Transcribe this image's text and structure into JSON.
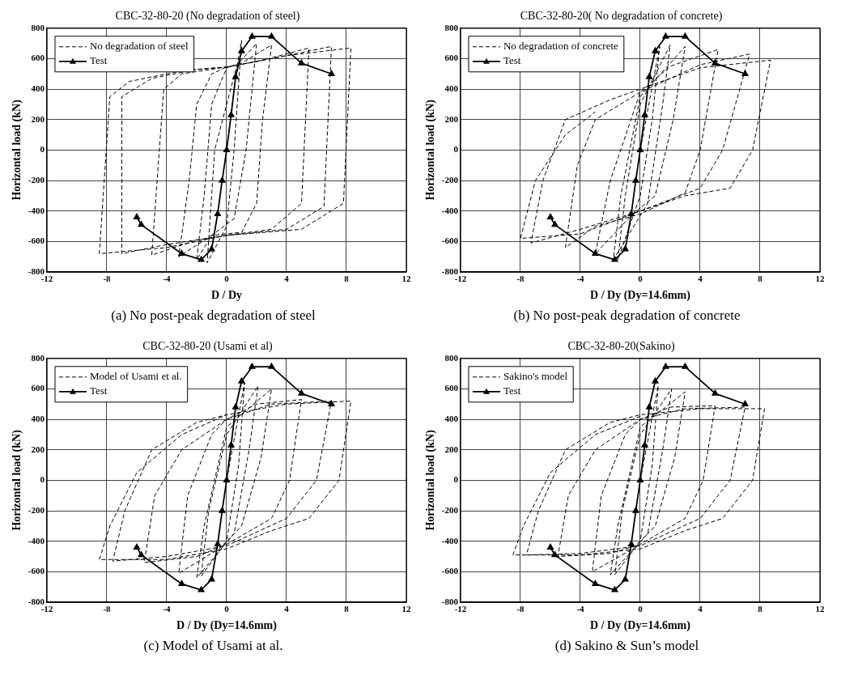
{
  "chart_data": [
    {
      "type": "line",
      "title": "CBC-32-80-20 (No degradation of steel)",
      "xlabel": "D / Dy",
      "ylabel": "Horizontal load (kN)",
      "annotations": [
        "(a) No post-peak degradation of steel"
      ],
      "xlim": [
        -12,
        12
      ],
      "ylim": [
        -800,
        800
      ],
      "xticks": [
        -12,
        -8,
        -4,
        0,
        4,
        8,
        12
      ],
      "yticks": [
        -800,
        -600,
        -400,
        -200,
        0,
        200,
        400,
        600,
        800
      ],
      "grid": true,
      "legend": "top left",
      "series": [
        {
          "name": "No degradation of steel",
          "color": "#000000",
          "line_style": "dashed",
          "marker": "none",
          "x": [
            0,
            0.7,
            1,
            0.5,
            0,
            -1.3,
            -0.8,
            0.7,
            2,
            1.3,
            0.5,
            -1,
            -2,
            -1.5,
            -1,
            0,
            1,
            3,
            2.4,
            2,
            1,
            -1,
            -3.2,
            -2.5,
            -2,
            -1,
            0,
            2,
            5.5,
            5,
            3,
            0,
            -2,
            -5,
            -4.2,
            -3,
            0,
            3,
            7,
            6.5,
            4,
            0,
            -4,
            -7,
            -7,
            -5,
            -2,
            0,
            4,
            8.3,
            7.8,
            5,
            0,
            -4,
            -8.5,
            -7.8,
            -6.5,
            -3,
            0
          ],
          "values": [
            0,
            550,
            720,
            0,
            -500,
            -740,
            0,
            560,
            700,
            0,
            -450,
            -560,
            -720,
            -300,
            300,
            540,
            570,
            690,
            200,
            -350,
            -540,
            -560,
            -700,
            -200,
            300,
            500,
            545,
            580,
            670,
            -350,
            -520,
            -560,
            -590,
            -690,
            400,
            500,
            545,
            600,
            680,
            -370,
            -520,
            -560,
            -620,
            -680,
            350,
            470,
            530,
            545,
            620,
            670,
            -350,
            -520,
            -560,
            -640,
            -680,
            350,
            450,
            520,
            545
          ]
        },
        {
          "name": "Test",
          "color": "#000000",
          "line_style": "solid",
          "marker": "triangle",
          "x": [
            -6,
            -5.7,
            -3,
            -1.7,
            -1,
            -0.6,
            -0.3,
            0,
            0.3,
            0.6,
            1,
            1.7,
            3,
            5,
            7
          ],
          "values": [
            -440,
            -490,
            -680,
            -720,
            -650,
            -420,
            -200,
            0,
            230,
            480,
            650,
            745,
            745,
            570,
            500
          ]
        }
      ]
    },
    {
      "type": "line",
      "title": "CBC-32-80-20( No degradation of concrete)",
      "xlabel": "D / Dy (Dy=14.6mm)",
      "ylabel": "Horizontal load (kN)",
      "annotations": [
        "(b) No post-peak degradation of concrete"
      ],
      "xlim": [
        -12,
        12
      ],
      "ylim": [
        -800,
        800
      ],
      "xticks": [
        -12,
        -8,
        -4,
        0,
        4,
        8,
        12
      ],
      "yticks": [
        -800,
        -600,
        -400,
        -200,
        0,
        200,
        400,
        600,
        800
      ],
      "grid": true,
      "legend": "top left",
      "series": [
        {
          "name": "No degradation of concrete",
          "color": "#000000",
          "line_style": "dashed",
          "marker": "none",
          "x": [
            0,
            1.3,
            0.8,
            0,
            -1.5,
            -1,
            0,
            2,
            1.5,
            0.5,
            -1.8,
            -1.3,
            0,
            3,
            2.2,
            1,
            -0.5,
            -3,
            -2,
            0,
            2,
            5.2,
            4,
            3,
            0,
            -3,
            -5,
            -4.2,
            -3,
            0,
            4,
            7.3,
            5.5,
            4,
            0,
            -4,
            -7.3,
            -6.5,
            -5,
            -2,
            0,
            4,
            8.7,
            7.5,
            6,
            3,
            0,
            -4,
            -8,
            -7,
            -5,
            -3
          ],
          "values": [
            0,
            680,
            200,
            -300,
            -720,
            -300,
            300,
            690,
            300,
            -350,
            -720,
            -300,
            350,
            680,
            200,
            -300,
            -420,
            -680,
            -200,
            380,
            550,
            660,
            0,
            -280,
            -420,
            -500,
            -640,
            -100,
            200,
            380,
            560,
            630,
            0,
            -250,
            -400,
            -520,
            -610,
            -200,
            200,
            330,
            400,
            540,
            590,
            0,
            -250,
            -300,
            -400,
            -550,
            -580,
            -200,
            100,
            250
          ]
        },
        {
          "name": "Test",
          "color": "#000000",
          "line_style": "solid",
          "marker": "triangle",
          "x": [
            -6,
            -5.7,
            -3,
            -1.7,
            -1,
            -0.6,
            -0.3,
            0,
            0.3,
            0.6,
            1,
            1.7,
            3,
            5,
            7
          ],
          "values": [
            -440,
            -490,
            -680,
            -720,
            -650,
            -420,
            -200,
            0,
            230,
            480,
            650,
            745,
            745,
            570,
            500
          ]
        }
      ]
    },
    {
      "type": "line",
      "title": "CBC-32-80-20 (Usami et al)",
      "xlabel": "D / Dy (Dy=14.6mm)",
      "ylabel": "Horizontal load (kN)",
      "annotations": [
        "(c) Model of Usami at al."
      ],
      "xlim": [
        -12,
        12
      ],
      "ylim": [
        -800,
        800
      ],
      "xticks": [
        -12,
        -8,
        -4,
        0,
        4,
        8,
        12
      ],
      "yticks": [
        -800,
        -600,
        -400,
        -200,
        0,
        200,
        400,
        600,
        800
      ],
      "grid": true,
      "legend": "top left",
      "series": [
        {
          "name": "Model of Usami et al.",
          "color": "#000000",
          "line_style": "dashed",
          "marker": "none",
          "x": [
            0,
            1.2,
            0.8,
            0,
            -1.7,
            -1.2,
            0,
            2.1,
            1.5,
            0.5,
            -2,
            -1.5,
            0,
            3,
            2.3,
            1,
            -0.5,
            -3.2,
            -2.6,
            -1,
            0,
            2,
            5,
            4.2,
            3,
            0,
            -2,
            -5.5,
            -4.8,
            -3,
            0,
            3,
            7,
            6,
            4,
            0,
            -4,
            -7.6,
            -6.8,
            -5,
            -2,
            0,
            4,
            8.3,
            7.5,
            5.5,
            3,
            0,
            -4,
            -8.5,
            -7.8,
            -6,
            -3,
            0
          ],
          "values": [
            0,
            640,
            100,
            -400,
            -630,
            -200,
            300,
            620,
            200,
            -350,
            -640,
            -300,
            350,
            600,
            150,
            -300,
            -450,
            -610,
            -100,
            300,
            400,
            500,
            530,
            0,
            -250,
            -420,
            -500,
            -540,
            -100,
            200,
            400,
            500,
            520,
            0,
            -250,
            -430,
            -500,
            -530,
            -200,
            200,
            380,
            430,
            500,
            520,
            0,
            -250,
            -330,
            -450,
            -520,
            -520,
            -300,
            50,
            300,
            430
          ]
        },
        {
          "name": "Test",
          "color": "#000000",
          "line_style": "solid",
          "marker": "triangle",
          "x": [
            -6,
            -5.7,
            -3,
            -1.7,
            -1,
            -0.6,
            -0.3,
            0,
            0.3,
            0.6,
            1,
            1.7,
            3,
            5,
            7
          ],
          "values": [
            -440,
            -490,
            -680,
            -720,
            -650,
            -420,
            -200,
            0,
            230,
            480,
            650,
            745,
            745,
            570,
            500
          ]
        }
      ]
    },
    {
      "type": "line",
      "title": "CBC-32-80-20(Sakino)",
      "xlabel": "D / Dy (Dy=14.6mm)",
      "ylabel": "Horizontal load (kN)",
      "annotations": [
        "(d) Sakino & Sun’s model"
      ],
      "xlim": [
        -12,
        12
      ],
      "ylim": [
        -800,
        800
      ],
      "xticks": [
        -12,
        -8,
        -4,
        0,
        4,
        8,
        12
      ],
      "yticks": [
        -800,
        -600,
        -400,
        -200,
        0,
        200,
        400,
        600,
        800
      ],
      "grid": true,
      "legend": "top left",
      "series": [
        {
          "name": "Sakino's model",
          "color": "#000000",
          "line_style": "dashed",
          "marker": "none",
          "x": [
            0,
            1.2,
            0.8,
            0,
            -1.7,
            -1.2,
            0,
            2.1,
            1.5,
            0.5,
            -2,
            -1.5,
            0,
            3,
            2.3,
            1,
            -0.5,
            -3.2,
            -2.6,
            -1,
            0,
            2,
            5,
            4.2,
            3,
            0,
            -2,
            -5.5,
            -4.8,
            -3,
            0,
            3,
            7,
            6,
            4,
            0,
            -4,
            -7.6,
            -6.8,
            -5,
            -2,
            0,
            4,
            8.3,
            7.5,
            5.5,
            3,
            0,
            -4,
            -8.5,
            -7.8,
            -6,
            -3,
            0
          ],
          "values": [
            0,
            620,
            100,
            -400,
            -620,
            -200,
            300,
            600,
            200,
            -350,
            -620,
            -300,
            350,
            580,
            150,
            -300,
            -450,
            -600,
            -100,
            300,
            400,
            480,
            490,
            0,
            -250,
            -420,
            -480,
            -500,
            -100,
            200,
            400,
            470,
            480,
            0,
            -250,
            -430,
            -480,
            -490,
            -200,
            200,
            380,
            430,
            470,
            470,
            0,
            -250,
            -330,
            -450,
            -490,
            -490,
            -300,
            50,
            300,
            420
          ]
        },
        {
          "name": "Test",
          "color": "#000000",
          "line_style": "solid",
          "marker": "triangle",
          "x": [
            -6,
            -5.7,
            -3,
            -1.7,
            -1,
            -0.6,
            -0.3,
            0,
            0.3,
            0.6,
            1,
            1.7,
            3,
            5,
            7
          ],
          "values": [
            -440,
            -490,
            -680,
            -720,
            -650,
            -420,
            -200,
            0,
            230,
            480,
            650,
            745,
            745,
            570,
            500
          ]
        }
      ]
    }
  ]
}
